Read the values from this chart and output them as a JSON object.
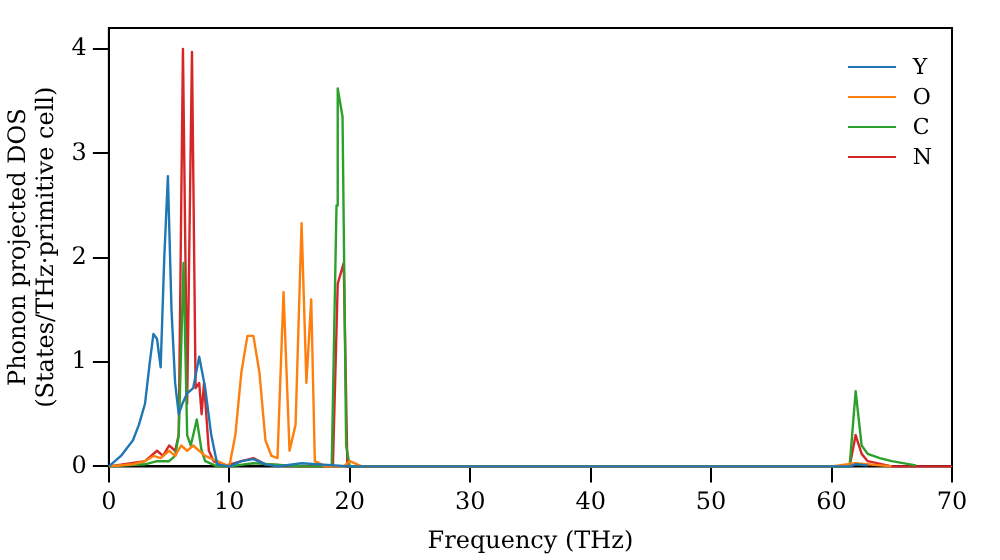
{
  "chart_data": {
    "type": "line",
    "xlabel": "Frequency (THz)",
    "ylabel": "Phonon projected DOS\n(States/THz·primitive cell)",
    "xlim": [
      0,
      70
    ],
    "xticks": [
      0,
      10,
      20,
      30,
      40,
      50,
      60,
      70
    ],
    "ylim": [
      0,
      4.2
    ],
    "yticks": [
      0,
      1,
      2,
      3,
      4
    ],
    "grid": false,
    "legend": "top right",
    "marker": "none",
    "series": [
      {
        "name": "Y",
        "color": "#1f77b4",
        "x": [
          0,
          1,
          2,
          2.5,
          3,
          3.4,
          3.7,
          4.0,
          4.3,
          4.6,
          4.9,
          5.2,
          5.5,
          5.8,
          6.1,
          6.5,
          7.0,
          7.5,
          8.0,
          8.5,
          9.0,
          10,
          11,
          12,
          13,
          14,
          16,
          20,
          61.5,
          62,
          63
        ],
        "values": [
          0,
          0.1,
          0.25,
          0.4,
          0.6,
          1.0,
          1.27,
          1.22,
          0.95,
          2.0,
          2.78,
          1.5,
          0.8,
          0.5,
          0.6,
          0.7,
          0.75,
          1.05,
          0.75,
          0.3,
          0.02,
          0,
          0.05,
          0.07,
          0.02,
          0,
          0.03,
          0,
          0,
          0.02,
          0.01
        ]
      },
      {
        "name": "O",
        "color": "#ff7f0e",
        "x": [
          0,
          2,
          3,
          3.7,
          4.3,
          5,
          5.5,
          6,
          6.5,
          7,
          7.5,
          8,
          9,
          10,
          10.5,
          11,
          11.5,
          12,
          12.5,
          13,
          13.5,
          14,
          14.5,
          15,
          15.5,
          16,
          16.4,
          16.8,
          17.1,
          18,
          19.5,
          20,
          21,
          30,
          50,
          60,
          62,
          63,
          65
        ],
        "values": [
          0,
          0.02,
          0.05,
          0.1,
          0.08,
          0.15,
          0.1,
          0.2,
          0.15,
          0.2,
          0.15,
          0.1,
          0.05,
          0,
          0.3,
          0.9,
          1.25,
          1.25,
          0.9,
          0.25,
          0.1,
          0.08,
          1.67,
          0.15,
          0.4,
          2.33,
          0.8,
          1.6,
          0.05,
          0,
          0,
          0.05,
          0,
          0,
          0,
          0,
          0.03,
          0.02,
          0
        ]
      },
      {
        "name": "C",
        "color": "#2ca02c",
        "x": [
          0,
          3,
          4,
          5,
          5.5,
          5.8,
          6.2,
          6.5,
          6.8,
          7.3,
          7.7,
          8,
          9,
          10,
          12,
          16,
          18.5,
          18.9,
          19.0,
          19.4,
          19.7,
          20,
          30,
          60,
          61.5,
          62,
          62.5,
          63,
          64,
          65,
          67
        ],
        "values": [
          0,
          0.02,
          0.05,
          0.05,
          0.1,
          0.3,
          1.95,
          0.3,
          0.2,
          0.45,
          0.15,
          0.05,
          0,
          0,
          0.03,
          0,
          0,
          2.5,
          3.62,
          3.35,
          0.2,
          0,
          0,
          0,
          0,
          0.72,
          0.2,
          0.12,
          0.08,
          0.05,
          0.01
        ]
      },
      {
        "name": "N",
        "color": "#d62728",
        "x": [
          0,
          3,
          3.5,
          4,
          4.5,
          5,
          5.5,
          5.8,
          6.15,
          6.5,
          6.9,
          7.2,
          7.5,
          7.7,
          7.9,
          8.3,
          8.7,
          9.5,
          11,
          12,
          13,
          16,
          18.6,
          19.0,
          19.5,
          19.8,
          20,
          30,
          60,
          61.5,
          62,
          62.5,
          63,
          65,
          70
        ],
        "values": [
          0,
          0.05,
          0.1,
          0.15,
          0.1,
          0.2,
          0.15,
          0.3,
          4.0,
          0.6,
          3.97,
          0.75,
          0.8,
          0.5,
          0.8,
          0.15,
          0.05,
          0,
          0.05,
          0.08,
          0.02,
          0,
          0,
          1.75,
          1.95,
          0,
          0,
          0,
          0,
          0,
          0.3,
          0.12,
          0.05,
          0,
          0
        ]
      }
    ]
  }
}
